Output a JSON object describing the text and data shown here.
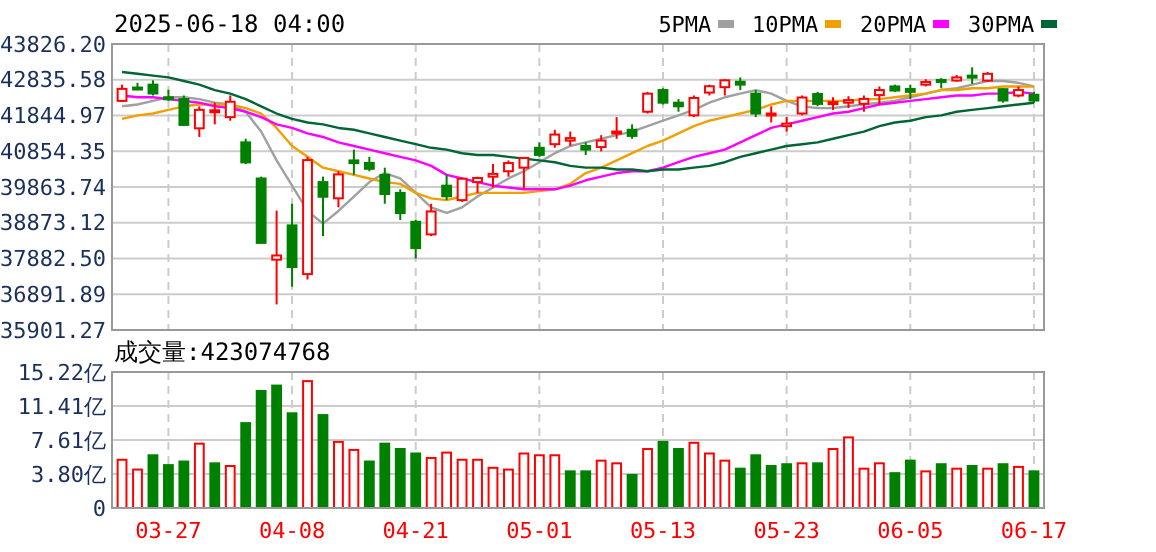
{
  "chart_data": [
    {
      "type": "candlestick",
      "title": "2025-06-18 04:00",
      "categories": [
        null,
        null,
        null,
        null,
        null,
        null,
        null,
        null,
        null,
        null,
        null,
        null,
        null,
        null,
        null,
        null,
        null,
        null,
        null,
        null,
        null,
        null,
        null,
        null,
        null,
        null,
        null,
        null,
        null,
        null,
        null,
        null,
        null,
        null,
        null,
        null,
        null,
        null,
        null,
        null,
        null,
        null,
        null,
        null,
        null,
        null,
        null,
        null,
        null,
        null,
        null,
        null,
        null,
        null,
        null,
        null,
        null,
        null,
        null,
        null
      ],
      "ohlc": [
        [
          42250,
          42700,
          42220,
          42583
        ],
        [
          42620,
          42750,
          42550,
          42587
        ],
        [
          42700,
          42820,
          42400,
          42455
        ],
        [
          42350,
          42560,
          42250,
          42300
        ],
        [
          42300,
          42400,
          41550,
          41584
        ],
        [
          41490,
          42100,
          41250,
          42002
        ],
        [
          41950,
          42200,
          41600,
          41990
        ],
        [
          41800,
          42400,
          41700,
          42226
        ],
        [
          41100,
          41200,
          40500,
          40546
        ],
        [
          40100,
          40150,
          38300,
          38315
        ],
        [
          37850,
          39210,
          36610,
          37966
        ],
        [
          38800,
          39400,
          37100,
          37646
        ],
        [
          37450,
          40700,
          37300,
          40609
        ],
        [
          40000,
          40150,
          38500,
          39594
        ],
        [
          39550,
          40300,
          39300,
          40213
        ],
        [
          40600,
          40900,
          40200,
          40525
        ],
        [
          40530,
          40700,
          40300,
          40368
        ],
        [
          40200,
          40400,
          39400,
          39669
        ],
        [
          39700,
          39800,
          38950,
          39142
        ],
        [
          38900,
          38950,
          37880,
          38170
        ],
        [
          38550,
          39400,
          38500,
          39187
        ],
        [
          39900,
          40200,
          39500,
          39607
        ],
        [
          39500,
          40100,
          39450,
          40093
        ],
        [
          40000,
          40150,
          39700,
          40114
        ],
        [
          40150,
          40500,
          39850,
          40228
        ],
        [
          40300,
          40600,
          40150,
          40527
        ],
        [
          40400,
          40700,
          39800,
          40669
        ],
        [
          40950,
          41100,
          40700,
          40753
        ],
        [
          41050,
          41450,
          40950,
          41317
        ],
        [
          41150,
          41400,
          41000,
          41219
        ],
        [
          41000,
          41100,
          40750,
          40900
        ],
        [
          40970,
          41300,
          40850,
          41150
        ],
        [
          41350,
          41800,
          41200,
          41400
        ],
        [
          41450,
          41600,
          41200,
          41280
        ],
        [
          41950,
          42500,
          41900,
          42450
        ],
        [
          42550,
          42600,
          42150,
          42200
        ],
        [
          42200,
          42300,
          41950,
          42100
        ],
        [
          41850,
          42400,
          41800,
          42330
        ],
        [
          42480,
          42700,
          42400,
          42655
        ],
        [
          42630,
          42850,
          42400,
          42820
        ],
        [
          42780,
          42900,
          42550,
          42700
        ],
        [
          42450,
          42550,
          41800,
          41900
        ],
        [
          41850,
          42100,
          41650,
          41900
        ],
        [
          41550,
          41800,
          41400,
          41620
        ],
        [
          41900,
          42400,
          41850,
          42343
        ],
        [
          42440,
          42500,
          42100,
          42166
        ],
        [
          42180,
          42350,
          42000,
          42216
        ],
        [
          42200,
          42380,
          42050,
          42270
        ],
        [
          42170,
          42400,
          41950,
          42305
        ],
        [
          42410,
          42650,
          42150,
          42550
        ],
        [
          42650,
          42700,
          42500,
          42537
        ],
        [
          42580,
          42700,
          42300,
          42500
        ],
        [
          42700,
          42850,
          42650,
          42775
        ],
        [
          42830,
          42880,
          42600,
          42800
        ],
        [
          42814,
          42970,
          42780,
          42900
        ],
        [
          42950,
          43180,
          42720,
          42900
        ],
        [
          42814,
          43050,
          42780,
          43000
        ],
        [
          42575,
          42600,
          42200,
          42260
        ],
        [
          42400,
          42650,
          42350,
          42550
        ],
        [
          42420,
          42500,
          42200,
          42260
        ]
      ],
      "colors": [
        "#ff0000",
        "#008000",
        "#008000",
        "#008000",
        "#008000",
        "#ff0000",
        "#ff0000",
        "#ff0000",
        "#008000",
        "#008000",
        "#ff0000",
        "#008000",
        "#ff0000",
        "#008000",
        "#ff0000",
        "#008000",
        "#008000",
        "#008000",
        "#008000",
        "#008000",
        "#ff0000",
        "#008000",
        "#ff0000",
        "#ff0000",
        "#ff0000",
        "#ff0000",
        "#ff0000",
        "#008000",
        "#ff0000",
        "#ff0000",
        "#008000",
        "#ff0000",
        "#ff0000",
        "#008000",
        "#ff0000",
        "#008000",
        "#008000",
        "#ff0000",
        "#ff0000",
        "#ff0000",
        "#008000",
        "#008000",
        "#ff0000",
        "#ff0000",
        "#ff0000",
        "#008000",
        "#ff0000",
        "#ff0000",
        "#ff0000",
        "#ff0000",
        "#008000",
        "#008000",
        "#ff0000",
        "#008000",
        "#ff0000",
        "#008000",
        "#ff0000",
        "#008000",
        "#ff0000",
        "#008000"
      ],
      "series": [
        {
          "name": "5PMA",
          "type": "line",
          "color": "#a0a0a0",
          "values": [
            42100,
            42150,
            42250,
            42350,
            42350,
            42300,
            42200,
            42150,
            41950,
            41400,
            40600,
            39900,
            39200,
            38850,
            39200,
            39600,
            40000,
            40250,
            40100,
            39700,
            39300,
            39150,
            39300,
            39600,
            39850,
            40100,
            40300,
            40550,
            40800,
            41000,
            41100,
            41200,
            41300,
            41400,
            41550,
            41700,
            41850,
            42000,
            42200,
            42350,
            42450,
            42550,
            42450,
            42250,
            42100,
            42050,
            42050,
            42100,
            42150,
            42200,
            42250,
            42350,
            42450,
            42550,
            42600,
            42700,
            42800,
            42800,
            42750,
            42650
          ]
        },
        {
          "name": "10PMA",
          "type": "line",
          "color": "#f0a000",
          "values": [
            41750,
            41850,
            41900,
            42000,
            42100,
            42150,
            42150,
            42150,
            42050,
            41900,
            41500,
            41000,
            40700,
            40400,
            40300,
            40200,
            40100,
            40000,
            39950,
            39700,
            39550,
            39500,
            39600,
            39700,
            39700,
            39700,
            39700,
            39750,
            39800,
            39950,
            40250,
            40400,
            40600,
            40800,
            41000,
            41150,
            41350,
            41550,
            41700,
            41800,
            41900,
            42000,
            42150,
            42250,
            42250,
            42250,
            42250,
            42250,
            42300,
            42300,
            42350,
            42400,
            42450,
            42550,
            42550,
            42600,
            42600,
            42650,
            42650,
            42650
          ]
        },
        {
          "name": "20PMA",
          "type": "line",
          "color": "#ff00ff",
          "values": [
            42400,
            42350,
            42350,
            42300,
            42250,
            42200,
            42100,
            42050,
            41950,
            41800,
            41600,
            41500,
            41350,
            41250,
            41100,
            41000,
            40900,
            40800,
            40700,
            40600,
            40450,
            40200,
            40100,
            40000,
            39900,
            39850,
            39800,
            39800,
            39800,
            39900,
            40050,
            40150,
            40250,
            40300,
            40300,
            40400,
            40550,
            40700,
            40800,
            40900,
            41100,
            41300,
            41500,
            41600,
            41700,
            41800,
            41900,
            41950,
            42050,
            42150,
            42200,
            42250,
            42300,
            42350,
            42400,
            42400,
            42450,
            42450,
            42500,
            42450
          ]
        },
        {
          "name": "30PMA",
          "type": "line",
          "color": "#006633",
          "values": [
            43050,
            43000,
            42950,
            42900,
            42800,
            42700,
            42550,
            42450,
            42300,
            42100,
            41900,
            41750,
            41650,
            41600,
            41500,
            41450,
            41350,
            41250,
            41150,
            41050,
            40950,
            40900,
            40800,
            40750,
            40750,
            40700,
            40650,
            40600,
            40550,
            40450,
            40400,
            40400,
            40350,
            40350,
            40300,
            40350,
            40350,
            40400,
            40450,
            40550,
            40700,
            40800,
            40900,
            41000,
            41050,
            41100,
            41200,
            41300,
            41400,
            41550,
            41650,
            41700,
            41800,
            41850,
            41950,
            42000,
            42050,
            42100,
            42150,
            42200
          ]
        }
      ],
      "ylim": [
        35901.27,
        43826.2
      ],
      "yticks": [
        35901.27,
        36891.89,
        {
          "value": 37882.5,
          "label": "37882.50"
        },
        38873.12,
        39863.74,
        40854.35,
        41844.97,
        42835.58,
        {
          "value": 43826.2,
          "label": "43826.20"
        }
      ],
      "grid": true,
      "legend": "top right",
      "tick_labels": "y"
    },
    {
      "type": "bar",
      "title": "成交量:423074768",
      "categories": [
        null,
        null,
        null,
        "03-27",
        null,
        null,
        null,
        null,
        null,
        null,
        null,
        "04-08",
        null,
        null,
        null,
        null,
        null,
        null,
        null,
        "04-21",
        null,
        null,
        null,
        null,
        null,
        null,
        null,
        "05-01",
        null,
        null,
        null,
        null,
        null,
        null,
        null,
        "05-13",
        null,
        null,
        null,
        null,
        null,
        null,
        null,
        "05-23",
        null,
        null,
        null,
        null,
        null,
        null,
        null,
        "06-05",
        null,
        null,
        null,
        null,
        null,
        null,
        null,
        "06-17"
      ],
      "values": [
        5.4,
        4.3,
        5.9,
        4.8,
        5.2,
        7.2,
        5.0,
        4.7,
        9.5,
        13.1,
        13.7,
        10.6,
        14.2,
        10.4,
        7.4,
        6.5,
        5.2,
        7.2,
        6.6,
        6.1,
        5.6,
        6.2,
        5.4,
        5.4,
        4.5,
        4.3,
        6.1,
        5.9,
        5.9,
        4.1,
        4.1,
        5.3,
        5.0,
        3.7,
        6.6,
        7.4,
        6.6,
        7.3,
        6.1,
        5.3,
        4.4,
        5.9,
        4.7,
        4.9,
        5.0,
        5.0,
        6.6,
        7.9,
        4.4,
        5.0,
        3.9,
        5.3,
        4.1,
        4.9,
        4.4,
        4.7,
        4.4,
        4.9,
        4.6,
        4.1
      ],
      "colors": [
        "#ff0000",
        "#ff0000",
        "#008000",
        "#008000",
        "#008000",
        "#ff0000",
        "#008000",
        "#ff0000",
        "#008000",
        "#008000",
        "#008000",
        "#008000",
        "#ff0000",
        "#008000",
        "#ff0000",
        "#ff0000",
        "#008000",
        "#008000",
        "#008000",
        "#008000",
        "#ff0000",
        "#ff0000",
        "#ff0000",
        "#ff0000",
        "#ff0000",
        "#ff0000",
        "#ff0000",
        "#ff0000",
        "#ff0000",
        "#008000",
        "#008000",
        "#ff0000",
        "#ff0000",
        "#008000",
        "#ff0000",
        "#008000",
        "#008000",
        "#ff0000",
        "#ff0000",
        "#ff0000",
        "#008000",
        "#008000",
        "#008000",
        "#008000",
        "#ff0000",
        "#008000",
        "#ff0000",
        "#ff0000",
        "#ff0000",
        "#ff0000",
        "#008000",
        "#008000",
        "#ff0000",
        "#008000",
        "#ff0000",
        "#008000",
        "#ff0000",
        "#008000",
        "#ff0000",
        "#008000"
      ],
      "ylim": [
        0,
        15.22
      ],
      "yticks": [
        0,
        {
          "value": 3.8,
          "label": "3.80亿"
        },
        {
          "value": 7.61,
          "label": "7.61亿"
        },
        {
          "value": 11.41,
          "label": "11.41亿"
        },
        {
          "value": 15.22,
          "label": "15.22亿"
        }
      ],
      "grid": true
    }
  ]
}
